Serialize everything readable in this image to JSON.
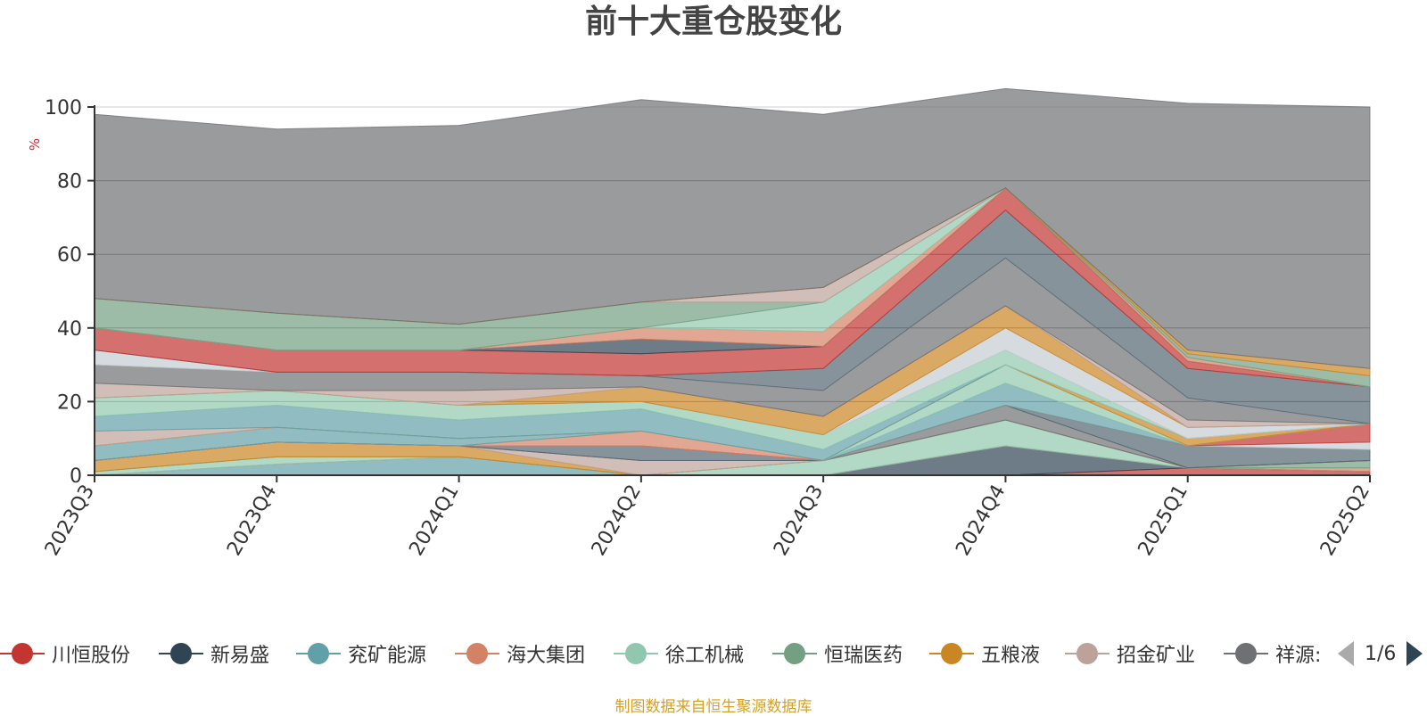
{
  "chart_data": {
    "type": "area",
    "title": "前十大重仓股变化",
    "ylabel": "%",
    "ylim": [
      0,
      100
    ],
    "yticks": [
      0,
      20,
      40,
      60,
      80,
      100
    ],
    "grid": true,
    "categories": [
      "2023Q3",
      "2023Q4",
      "2024Q1",
      "2024Q2",
      "2024Q3",
      "2024Q4",
      "2025Q1",
      "2025Q2"
    ],
    "series": [
      {
        "name": "川恒股份",
        "color": "#c23531",
        "values": [
          0,
          0,
          0,
          0,
          0,
          0,
          2,
          1
        ]
      },
      {
        "name": "新易盛",
        "color": "#2f4554",
        "values": [
          0,
          0,
          0,
          0,
          0,
          8,
          0,
          0
        ]
      },
      {
        "name": "兖矿能源",
        "color": "#61a0a8",
        "values": [
          0,
          3,
          5,
          0,
          0,
          0,
          0,
          0
        ]
      },
      {
        "name": "海大集团",
        "color": "#d48265",
        "values": [
          0,
          0,
          0,
          0,
          0,
          0,
          0,
          1
        ]
      },
      {
        "name": "徐工机械",
        "color": "#91c7ae",
        "values": [
          1,
          2,
          0,
          0,
          4,
          7,
          0,
          0
        ]
      },
      {
        "name": "恒瑞医药",
        "color": "#749f83",
        "values": [
          0,
          0,
          0,
          0,
          0,
          0,
          0,
          2
        ]
      },
      {
        "name": "五粮液",
        "color": "#ca8622",
        "values": [
          3,
          4,
          3,
          0,
          0,
          0,
          0,
          0
        ]
      },
      {
        "name": "招金矿业",
        "color": "#bda29a",
        "values": [
          0,
          0,
          0,
          4,
          0,
          0,
          0,
          0
        ]
      },
      {
        "name": "祥源文旅",
        "color": "#6e7074",
        "values": [
          0,
          0,
          0,
          0,
          0,
          4,
          0,
          0
        ]
      },
      {
        "name": "",
        "color": "#546570",
        "values": [
          0,
          0,
          0,
          4,
          0,
          0,
          6,
          3
        ]
      },
      {
        "name": "",
        "color": "#c4ccd3",
        "values": [
          0,
          0,
          0,
          0,
          0,
          0,
          0,
          2
        ]
      },
      {
        "name": "",
        "color": "#c23531",
        "values": [
          0,
          0,
          0,
          0,
          0,
          0,
          0,
          5
        ]
      },
      {
        "name": "",
        "color": "#d48265",
        "values": [
          0,
          0,
          0,
          4,
          0,
          0,
          0,
          0
        ]
      },
      {
        "name": "",
        "color": "#61a0a8",
        "values": [
          4,
          4,
          2,
          0,
          0,
          6,
          0,
          0
        ]
      },
      {
        "name": "",
        "color": "#91c7ae",
        "values": [
          0,
          0,
          0,
          0,
          0,
          5,
          0,
          0
        ]
      },
      {
        "name": "",
        "color": "#ca8622",
        "values": [
          0,
          0,
          0,
          0,
          0,
          0,
          2,
          0
        ]
      },
      {
        "name": "",
        "color": "#bda29a",
        "values": [
          4,
          0,
          0,
          0,
          0,
          0,
          0,
          0
        ]
      },
      {
        "name": "",
        "color": "#61a0a8",
        "values": [
          4,
          6,
          5,
          6,
          3,
          0,
          0,
          0
        ]
      },
      {
        "name": "",
        "color": "#91c7ae",
        "values": [
          5,
          4,
          4,
          2,
          4,
          4,
          0,
          0
        ]
      },
      {
        "name": "",
        "color": "#c4ccd3",
        "values": [
          0,
          0,
          0,
          0,
          0,
          6,
          3,
          0
        ]
      },
      {
        "name": "",
        "color": "#ca8622",
        "values": [
          0,
          0,
          0,
          4,
          5,
          6,
          0,
          0
        ]
      },
      {
        "name": "",
        "color": "#bda29a",
        "values": [
          4,
          0,
          4,
          0,
          0,
          0,
          2,
          0
        ]
      },
      {
        "name": "",
        "color": "#6e7074",
        "values": [
          5,
          5,
          5,
          3,
          7,
          13,
          6,
          0
        ]
      },
      {
        "name": "",
        "color": "#c4ccd3",
        "values": [
          4,
          0,
          0,
          0,
          0,
          0,
          0,
          0
        ]
      },
      {
        "name": "",
        "color": "#546570",
        "values": [
          0,
          0,
          0,
          0,
          6,
          13,
          8,
          10
        ]
      },
      {
        "name": "",
        "color": "#c23531",
        "values": [
          6,
          6,
          6,
          6,
          6,
          6,
          2,
          0
        ]
      },
      {
        "name": "",
        "color": "#2f4554",
        "values": [
          0,
          0,
          0,
          4,
          0,
          0,
          0,
          0
        ]
      },
      {
        "name": "",
        "color": "#d48265",
        "values": [
          0,
          0,
          0,
          3,
          4,
          0,
          1,
          0
        ]
      },
      {
        "name": "",
        "color": "#91c7ae",
        "values": [
          0,
          0,
          0,
          0,
          8,
          0,
          0,
          0
        ]
      },
      {
        "name": "",
        "color": "#749f83",
        "values": [
          8,
          10,
          7,
          7,
          0,
          0,
          1,
          3
        ]
      },
      {
        "name": "",
        "color": "#bda29a",
        "values": [
          0,
          0,
          0,
          0,
          4,
          0,
          0,
          0
        ]
      },
      {
        "name": "",
        "color": "#ca8622",
        "values": [
          0,
          0,
          0,
          0,
          0,
          0,
          1,
          2
        ]
      },
      {
        "name": "",
        "color": "#6e7074",
        "values": [
          50,
          50,
          54,
          55,
          47,
          27,
          67,
          71
        ]
      }
    ]
  },
  "legend": {
    "items": [
      {
        "name": "川恒股份",
        "color": "#c23531"
      },
      {
        "name": "新易盛",
        "color": "#2f4554"
      },
      {
        "name": "兖矿能源",
        "color": "#61a0a8"
      },
      {
        "name": "海大集团",
        "color": "#d48265"
      },
      {
        "name": "徐工机械",
        "color": "#91c7ae"
      },
      {
        "name": "恒瑞医药",
        "color": "#749f83"
      },
      {
        "name": "五粮液",
        "color": "#ca8622"
      },
      {
        "name": "招金矿业",
        "color": "#bda29a"
      },
      {
        "name": "祥源:",
        "color": "#6e7074"
      }
    ],
    "page": "1/6"
  },
  "footer": "制图数据来自恒生聚源数据库"
}
